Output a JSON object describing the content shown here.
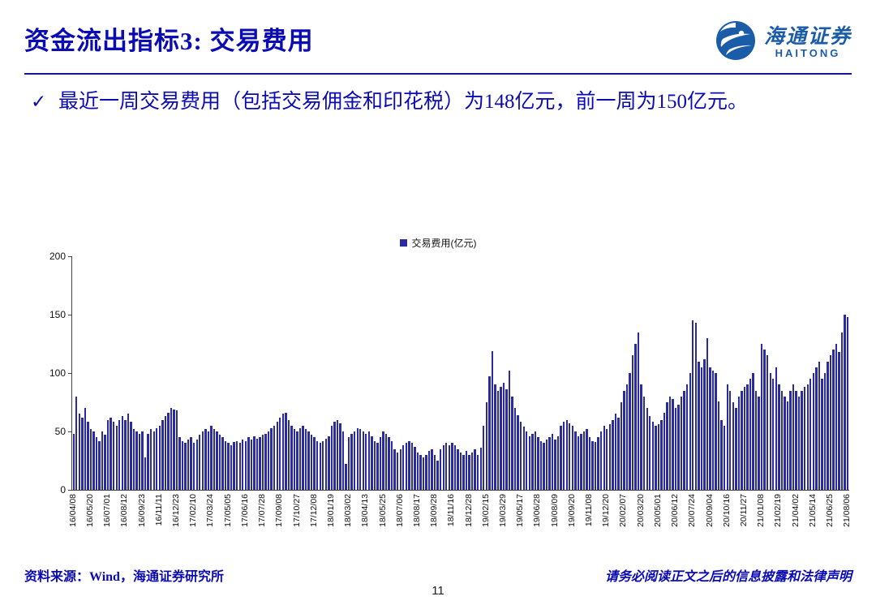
{
  "page": {
    "title": "资金流出指标3:  交易费用",
    "page_number": "11"
  },
  "logo": {
    "name_cn": "海通证券",
    "name_en": "HAITONG"
  },
  "bullet": {
    "marker": "✓",
    "text": "最近一周交易费用（包括交易佣金和印花税）为148亿元，前一周为150亿元。"
  },
  "footer": {
    "source": "资料来源：Wind，海通证券研究所",
    "disclaimer": "请务必阅读正文之后的信息披露和法律声明"
  },
  "chart_data": {
    "type": "bar",
    "title": "",
    "legend": [
      "交易费用(亿元)"
    ],
    "ylabel": "",
    "xlabel": "",
    "ylim": [
      0,
      200
    ],
    "yticks": [
      0,
      50,
      100,
      150,
      200
    ],
    "grid": false,
    "legend_position": "top-center",
    "bar_color": "#2a2aa2",
    "label_every": 6,
    "x_labels": [
      "16/04/08",
      "16/05/20",
      "16/07/01",
      "16/08/12",
      "16/09/23",
      "16/11/11",
      "16/12/23",
      "17/02/10",
      "17/03/24",
      "17/05/05",
      "17/06/16",
      "17/07/28",
      "17/09/08",
      "17/10/27",
      "17/12/08",
      "18/01/19",
      "18/03/02",
      "18/04/13",
      "18/05/25",
      "18/07/06",
      "18/08/17",
      "18/09/28",
      "18/11/16",
      "18/12/28",
      "19/02/15",
      "19/03/29",
      "19/05/17",
      "19/06/28",
      "19/08/09",
      "19/09/20",
      "19/11/08",
      "19/12/20",
      "20/02/07",
      "20/03/20",
      "20/05/01",
      "20/06/12",
      "20/07/24",
      "20/09/04",
      "20/10/16",
      "20/11/27",
      "21/01/08",
      "21/02/19",
      "21/04/02",
      "21/05/14",
      "21/06/25",
      "21/08/06"
    ],
    "values": [
      48,
      80,
      65,
      62,
      70,
      58,
      52,
      50,
      45,
      42,
      50,
      47,
      60,
      62,
      58,
      55,
      60,
      63,
      60,
      65,
      58,
      52,
      50,
      48,
      50,
      28,
      48,
      52,
      50,
      53,
      55,
      60,
      63,
      66,
      70,
      69,
      68,
      45,
      42,
      40,
      43,
      45,
      40,
      43,
      47,
      50,
      52,
      50,
      55,
      52,
      50,
      47,
      45,
      42,
      40,
      38,
      41,
      42,
      40,
      43,
      42,
      45,
      43,
      46,
      44,
      45,
      47,
      48,
      50,
      53,
      55,
      58,
      62,
      65,
      66,
      60,
      55,
      52,
      50,
      53,
      55,
      52,
      50,
      47,
      45,
      42,
      40,
      42,
      44,
      46,
      55,
      58,
      60,
      57,
      50,
      22,
      45,
      48,
      50,
      53,
      52,
      50,
      48,
      50,
      46,
      42,
      40,
      45,
      50,
      48,
      45,
      42,
      35,
      32,
      35,
      38,
      40,
      42,
      40,
      37,
      32,
      30,
      28,
      30,
      33,
      35,
      30,
      25,
      35,
      38,
      40,
      38,
      40,
      38,
      35,
      32,
      30,
      33,
      30,
      32,
      35,
      30,
      36,
      55,
      75,
      97,
      119,
      90,
      85,
      88,
      92,
      86,
      102,
      80,
      70,
      64,
      58,
      54,
      50,
      46,
      48,
      50,
      45,
      42,
      40,
      43,
      45,
      48,
      43,
      46,
      55,
      58,
      60,
      57,
      55,
      50,
      46,
      48,
      50,
      52,
      45,
      42,
      41,
      45,
      50,
      55,
      52,
      56,
      60,
      65,
      62,
      75,
      85,
      90,
      100,
      115,
      125,
      135,
      90,
      80,
      70,
      63,
      58,
      55,
      56,
      60,
      66,
      75,
      80,
      78,
      70,
      73,
      80,
      85,
      90,
      100,
      145,
      143,
      110,
      105,
      112,
      130,
      105,
      102,
      100,
      76,
      60,
      55,
      90,
      85,
      75,
      70,
      80,
      85,
      88,
      90,
      95,
      100,
      85,
      80,
      125,
      120,
      115,
      100,
      95,
      105,
      90,
      85,
      80,
      76,
      85,
      90,
      85,
      80,
      85,
      88,
      90,
      95,
      100,
      105,
      110,
      95,
      100,
      110,
      115,
      120,
      125,
      118,
      135,
      150,
      148
    ]
  }
}
